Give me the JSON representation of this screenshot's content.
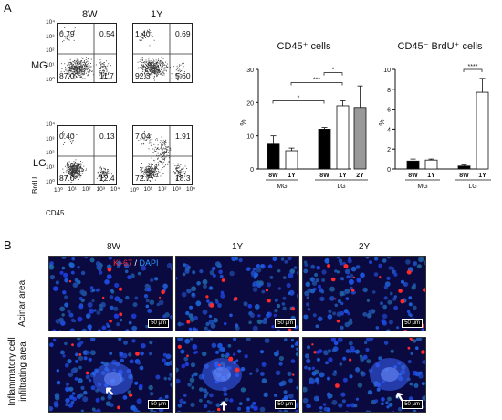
{
  "panel_a": {
    "letter": "A",
    "col_headers": [
      "8W",
      "1Y"
    ],
    "row_headers": [
      "MG",
      "LG"
    ],
    "y_axis_label": "BrdU",
    "x_axis_label": "CD45",
    "tick_labels": [
      "10⁰",
      "10¹",
      "10²",
      "10³",
      "10⁴"
    ],
    "plots": [
      {
        "q_ul": "0.79",
        "q_ur": "0.54",
        "q_ll": "87.0",
        "q_lr": "11.7"
      },
      {
        "q_ul": "1.40",
        "q_ur": "0.69",
        "q_ll": "92.3",
        "q_lr": "5.60"
      },
      {
        "q_ul": "0.40",
        "q_ur": "0.13",
        "q_ll": "87.0",
        "q_lr": "12.4"
      },
      {
        "q_ul": "7.04",
        "q_ur": "1.91",
        "q_ll": "72.7",
        "q_lr": "18.3"
      }
    ]
  },
  "chart_data": [
    {
      "type": "bar",
      "title": "CD45⁺ cells",
      "ylabel": "%",
      "ylim": [
        0,
        30
      ],
      "yticks": [
        "0",
        "10",
        "20",
        "30"
      ],
      "categories": [
        "8W",
        "1Y",
        "8W",
        "1Y",
        "2Y"
      ],
      "groups": [
        "MG",
        "LG"
      ],
      "values": [
        7.5,
        5.5,
        12,
        19,
        18.5
      ],
      "errors": [
        2.5,
        0.8,
        0.5,
        1.5,
        6.5
      ],
      "fills": [
        "#000000",
        "#ffffff",
        "#000000",
        "#ffffff",
        "#999999"
      ],
      "significance": [
        "*",
        "***",
        "*"
      ]
    },
    {
      "type": "bar",
      "title": "CD45⁻ BrdU⁺ cells",
      "ylabel": "%",
      "ylim": [
        0,
        10
      ],
      "yticks": [
        "0",
        "2",
        "4",
        "6",
        "8",
        "10"
      ],
      "categories": [
        "8W",
        "1Y",
        "8W",
        "1Y"
      ],
      "groups": [
        "MG",
        "LG"
      ],
      "values": [
        0.8,
        0.9,
        0.3,
        7.7
      ],
      "errors": [
        0.2,
        0.1,
        0.1,
        1.4
      ],
      "fills": [
        "#000000",
        "#ffffff",
        "#000000",
        "#ffffff"
      ],
      "significance": [
        "****"
      ]
    }
  ],
  "panel_b": {
    "letter": "B",
    "col_headers": [
      "8W",
      "1Y",
      "2Y"
    ],
    "stain_ki": "Ki-67",
    "stain_sep": " / ",
    "stain_dapi": "DAPI",
    "row_headers": [
      "Acinar area",
      "Inflammatory cell infiltrating area"
    ],
    "scale_bar": "50 μm",
    "colors": {
      "ki67": "#ff2a2a",
      "dapi": "#2a6bff",
      "bg": "#0a0a40"
    }
  }
}
